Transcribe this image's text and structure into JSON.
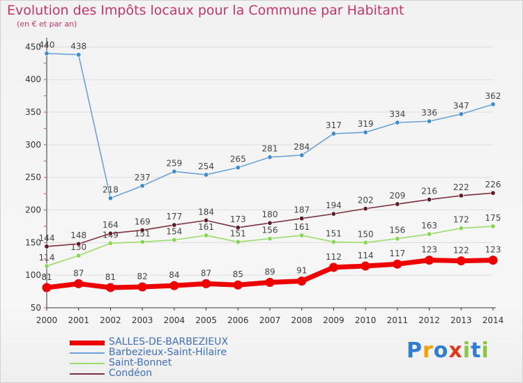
{
  "chart_data": {
    "type": "line",
    "title": "Evolution des Impôts locaux pour la Commune par Habitant",
    "subtitle": "(en € et par an)",
    "xlabel": "",
    "ylabel": "",
    "ylim": [
      50,
      460
    ],
    "yticks": [
      "50",
      "100",
      "150",
      "200",
      "250",
      "300",
      "350",
      "400",
      "450"
    ],
    "categories": [
      "2000",
      "2001",
      "2002",
      "2003",
      "2004",
      "2005",
      "2006",
      "2007",
      "2008",
      "2009",
      "2010",
      "2011",
      "2012",
      "2013",
      "2014"
    ],
    "series": [
      {
        "name": "SALLES-DE-BARBEZIEUX",
        "color": "#ee0000",
        "bold": true,
        "values": [
          81,
          87,
          81,
          82,
          84,
          87,
          85,
          89,
          91,
          112,
          114,
          117,
          123,
          122,
          123
        ]
      },
      {
        "name": "Barbezieux-Saint-Hilaire",
        "color": "#6aa3d8",
        "marker": "#3d8bd0",
        "values": [
          440,
          438,
          218,
          237,
          259,
          254,
          265,
          281,
          284,
          317,
          319,
          334,
          336,
          347,
          362
        ]
      },
      {
        "name": "Saint-Bonnet",
        "color": "#9adc6a",
        "marker": "#82d84e",
        "values": [
          114,
          130,
          149,
          151,
          154,
          161,
          151,
          156,
          161,
          151,
          150,
          156,
          163,
          172,
          175
        ]
      },
      {
        "name": "Condéon",
        "color": "#7a3040",
        "marker": "#5e1c26",
        "values": [
          144,
          148,
          164,
          169,
          177,
          184,
          173,
          180,
          187,
          194,
          202,
          209,
          216,
          222,
          226
        ]
      }
    ]
  },
  "brand": {
    "letters": [
      "P",
      "r",
      "o",
      "x",
      "i",
      "t",
      "i"
    ],
    "colors": [
      "#2e7fd4",
      "#f5a000",
      "#2e7fd4",
      "#e03a1a",
      "#8cc63f",
      "#2e7fd4",
      "#8cc63f"
    ]
  }
}
